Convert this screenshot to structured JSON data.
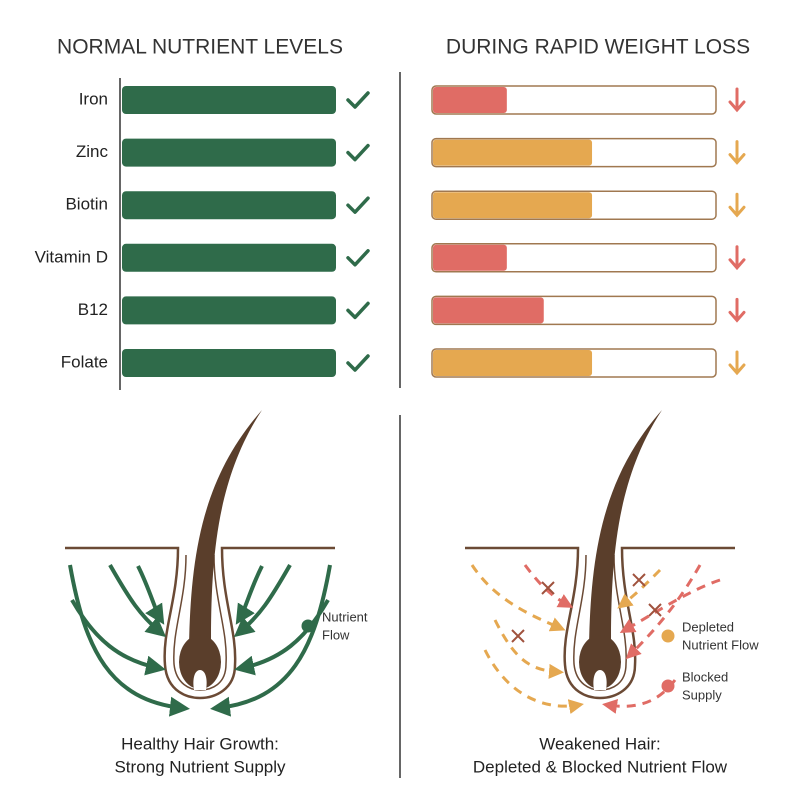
{
  "left_panel": {
    "title": "NORMAL NUTRIENT LEVELS",
    "color": "#2f6b4a",
    "nutrients": [
      {
        "name": "Iron",
        "level": 1
      },
      {
        "name": "Zinc",
        "level": 1
      },
      {
        "name": "Biotin",
        "level": 1
      },
      {
        "name": "Vitamin D",
        "level": 1
      },
      {
        "name": "B12",
        "level": 1
      },
      {
        "name": "Folate",
        "level": 1
      }
    ]
  },
  "right_panel": {
    "title": "DURING RAPID WEIGHT LOSS",
    "levels": [
      {
        "level": 0.26,
        "color": "#e06c65"
      },
      {
        "level": 0.56,
        "color": "#e5a850"
      },
      {
        "level": 0.56,
        "color": "#e5a850"
      },
      {
        "level": 0.26,
        "color": "#e06c65"
      },
      {
        "level": 0.39,
        "color": "#e06c65"
      },
      {
        "level": 0.56,
        "color": "#e5a850"
      }
    ]
  },
  "diagrams": [
    {
      "caption": [
        "Healthy Hair Growth:",
        "Strong Nutrient Supply"
      ],
      "legend": [
        {
          "label": [
            "Nutrient",
            "Flow"
          ],
          "color": "#2f6b4a"
        }
      ]
    },
    {
      "caption": [
        "Weakened Hair:",
        "Depleted & Blocked Nutrient Flow"
      ],
      "legend": [
        {
          "label": [
            "Depleted",
            "Nutrient Flow"
          ],
          "color": "#e5a850"
        },
        {
          "label": [
            "Blocked",
            "Supply"
          ],
          "color": "#e06c65"
        }
      ]
    }
  ]
}
